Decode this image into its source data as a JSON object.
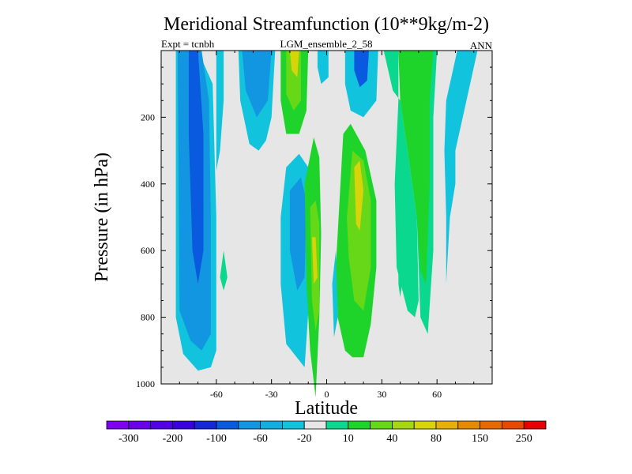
{
  "chart_data": {
    "type": "heatmap",
    "title": "Meridional Streamfunction (10**9kg/m-2)",
    "subtitle_left": "Expt = tcnbh",
    "subtitle_center": "LGM_ensemble_2_58",
    "subtitle_right": "ANN",
    "xlabel": "Latitude",
    "ylabel": "Pressure (in hPa)",
    "xlim": [
      -90,
      90
    ],
    "ylim": [
      1000,
      0
    ],
    "x_ticks": [
      {
        "value": -60,
        "label": "-60"
      },
      {
        "value": -30,
        "label": "-30"
      },
      {
        "value": 0,
        "label": "0"
      },
      {
        "value": 30,
        "label": "30"
      },
      {
        "value": 60,
        "label": "60"
      }
    ],
    "y_ticks": [
      {
        "value": 200,
        "label": "200"
      },
      {
        "value": 400,
        "label": "400"
      },
      {
        "value": 600,
        "label": "600"
      },
      {
        "value": 800,
        "label": "800"
      },
      {
        "value": 1000,
        "label": "1000"
      }
    ],
    "background_color": "#e6e6e6",
    "colorbar": {
      "colors": [
        "#7f00ef",
        "#6a00ea",
        "#5300e6",
        "#3a00e0",
        "#1428d8",
        "#0a5ae0",
        "#1296e2",
        "#12aee2",
        "#12c3de",
        "#e6e6e6",
        "#0ad88e",
        "#1ed42a",
        "#66d818",
        "#a6d812",
        "#d8d40a",
        "#e6b008",
        "#e68a00",
        "#e66a00",
        "#e64a00",
        "#e60000"
      ],
      "labels": [
        {
          "boundary": 1,
          "text": "-300"
        },
        {
          "boundary": 3,
          "text": "-200"
        },
        {
          "boundary": 5,
          "text": "-100"
        },
        {
          "boundary": 7,
          "text": "-60"
        },
        {
          "boundary": 9,
          "text": "-20"
        },
        {
          "boundary": 11,
          "text": "10"
        },
        {
          "boundary": 13,
          "text": "40"
        },
        {
          "boundary": 15,
          "text": "80"
        },
        {
          "boundary": 17,
          "text": "150"
        },
        {
          "boundary": 19,
          "text": "250"
        }
      ]
    },
    "contour_regions": [
      {
        "name": "sh-cell-outer",
        "level": "-20",
        "color": "#12c3de",
        "points": [
          [
            -82,
            0
          ],
          [
            -70,
            0
          ],
          [
            -62,
            100
          ],
          [
            -60,
            500
          ],
          [
            -60,
            900
          ],
          [
            -63,
            950
          ],
          [
            -70,
            960
          ],
          [
            -78,
            910
          ],
          [
            -82,
            800
          ],
          [
            -82,
            0
          ]
        ]
      },
      {
        "name": "sh-cell-mid",
        "level": "-40",
        "color": "#1296e2",
        "points": [
          [
            -81,
            0
          ],
          [
            -68,
            0
          ],
          [
            -64,
            150
          ],
          [
            -63,
            500
          ],
          [
            -63,
            850
          ],
          [
            -68,
            900
          ],
          [
            -74,
            870
          ],
          [
            -80,
            780
          ],
          [
            -81,
            0
          ]
        ]
      },
      {
        "name": "sh-cell-core",
        "level": "-60",
        "color": "#0a5ae0",
        "points": [
          [
            -75,
            0
          ],
          [
            -70,
            0
          ],
          [
            -67,
            250
          ],
          [
            -67,
            600
          ],
          [
            -70,
            700
          ],
          [
            -73,
            600
          ],
          [
            -75,
            250
          ],
          [
            -75,
            0
          ]
        ]
      },
      {
        "name": "sh-ferrel-upper",
        "level": "-20",
        "color": "#12c3de",
        "points": [
          [
            -60,
            0
          ],
          [
            -56,
            0
          ],
          [
            -56,
            150
          ],
          [
            -58,
            300
          ],
          [
            -60,
            360
          ],
          [
            -60,
            0
          ]
        ]
      },
      {
        "name": "sh-ferrel-patch",
        "level": "10",
        "color": "#0ad88e",
        "points": [
          [
            -56,
            600
          ],
          [
            -54,
            680
          ],
          [
            -56,
            720
          ],
          [
            -58,
            680
          ],
          [
            -56,
            600
          ]
        ]
      },
      {
        "name": "upper-cell-left",
        "level": "-20",
        "color": "#12c3de",
        "points": [
          [
            -48,
            0
          ],
          [
            -28,
            0
          ],
          [
            -30,
            200
          ],
          [
            -33,
            270
          ],
          [
            -37,
            300
          ],
          [
            -42,
            280
          ],
          [
            -47,
            150
          ],
          [
            -48,
            0
          ]
        ]
      },
      {
        "name": "upper-cell-left-core",
        "level": "-40",
        "color": "#1296e2",
        "points": [
          [
            -46,
            0
          ],
          [
            -30,
            0
          ],
          [
            -32,
            150
          ],
          [
            -38,
            200
          ],
          [
            -44,
            120
          ],
          [
            -46,
            0
          ]
        ]
      },
      {
        "name": "sh-hadley-upper-green",
        "level": "40",
        "color": "#1ed42a",
        "points": [
          [
            -25,
            0
          ],
          [
            -10,
            0
          ],
          [
            -11,
            180
          ],
          [
            -15,
            250
          ],
          [
            -22,
            250
          ],
          [
            -25,
            150
          ],
          [
            -25,
            0
          ]
        ]
      },
      {
        "name": "sh-hadley-upper-core",
        "level": "80",
        "color": "#66d818",
        "points": [
          [
            -22,
            0
          ],
          [
            -14,
            0
          ],
          [
            -14,
            150
          ],
          [
            -18,
            180
          ],
          [
            -22,
            130
          ],
          [
            -22,
            0
          ]
        ]
      },
      {
        "name": "sh-hadley-upper-peak",
        "level": "150",
        "color": "#d8d40a",
        "points": [
          [
            -20,
            0
          ],
          [
            -15,
            0
          ],
          [
            -16,
            80
          ],
          [
            -19,
            60
          ],
          [
            -20,
            0
          ]
        ]
      },
      {
        "name": "equatorial-upper-blue",
        "level": "-20",
        "color": "#12c3de",
        "points": [
          [
            -5,
            0
          ],
          [
            1,
            0
          ],
          [
            1,
            80
          ],
          [
            -3,
            100
          ],
          [
            -5,
            50
          ],
          [
            -5,
            0
          ]
        ]
      },
      {
        "name": "sh-lower-blue",
        "level": "-20",
        "color": "#12c3de",
        "points": [
          [
            -25,
            500
          ],
          [
            -22,
            350
          ],
          [
            -15,
            310
          ],
          [
            -10,
            350
          ],
          [
            -8,
            450
          ],
          [
            -9,
            700
          ],
          [
            -12,
            950
          ],
          [
            -22,
            880
          ],
          [
            -25,
            700
          ],
          [
            -25,
            500
          ]
        ]
      },
      {
        "name": "sh-lower-blue-core",
        "level": "-40",
        "color": "#1296e2",
        "points": [
          [
            -20,
            420
          ],
          [
            -14,
            380
          ],
          [
            -11,
            450
          ],
          [
            -12,
            680
          ],
          [
            -16,
            720
          ],
          [
            -20,
            600
          ],
          [
            -20,
            420
          ]
        ]
      },
      {
        "name": "sh-lower-green",
        "level": "40",
        "color": "#1ed42a",
        "points": [
          [
            -12,
            400
          ],
          [
            -7,
            260
          ],
          [
            -4,
            320
          ],
          [
            -3,
            550
          ],
          [
            -4,
            800
          ],
          [
            -6,
            1040
          ],
          [
            -9,
            900
          ],
          [
            -11,
            700
          ],
          [
            -12,
            400
          ]
        ]
      },
      {
        "name": "sh-lower-green-core",
        "level": "80",
        "color": "#66d818",
        "points": [
          [
            -9,
            470
          ],
          [
            -6,
            450
          ],
          [
            -4,
            520
          ],
          [
            -4,
            780
          ],
          [
            -6,
            840
          ],
          [
            -8,
            750
          ],
          [
            -9,
            470
          ]
        ]
      },
      {
        "name": "sh-lower-green-peak",
        "level": "150",
        "color": "#d8d40a",
        "points": [
          [
            -8,
            560
          ],
          [
            -6,
            560
          ],
          [
            -5,
            680
          ],
          [
            -7,
            700
          ],
          [
            -8,
            560
          ]
        ]
      },
      {
        "name": "nh-hadley-upper-blue",
        "level": "-20",
        "color": "#12c3de",
        "points": [
          [
            10,
            0
          ],
          [
            28,
            0
          ],
          [
            27,
            150
          ],
          [
            20,
            200
          ],
          [
            13,
            180
          ],
          [
            10,
            100
          ],
          [
            10,
            0
          ]
        ]
      },
      {
        "name": "nh-hadley-upper-blue-core",
        "level": "-60",
        "color": "#0a5ae0",
        "points": [
          [
            15,
            0
          ],
          [
            23,
            0
          ],
          [
            22,
            90
          ],
          [
            18,
            110
          ],
          [
            15,
            60
          ],
          [
            15,
            0
          ]
        ]
      },
      {
        "name": "nh-hadley-green",
        "level": "40",
        "color": "#1ed42a",
        "points": [
          [
            5,
            650
          ],
          [
            7,
            450
          ],
          [
            9,
            250
          ],
          [
            13,
            220
          ],
          [
            21,
            300
          ],
          [
            27,
            450
          ],
          [
            27,
            650
          ],
          [
            24,
            820
          ],
          [
            20,
            920
          ],
          [
            14,
            920
          ],
          [
            10,
            900
          ],
          [
            6,
            800
          ],
          [
            5,
            650
          ]
        ]
      },
      {
        "name": "nh-hadley-green-core",
        "level": "80",
        "color": "#66d818",
        "points": [
          [
            11,
            500
          ],
          [
            14,
            300
          ],
          [
            20,
            330
          ],
          [
            24,
            450
          ],
          [
            24,
            650
          ],
          [
            20,
            780
          ],
          [
            15,
            750
          ],
          [
            12,
            620
          ],
          [
            11,
            500
          ]
        ]
      },
      {
        "name": "nh-hadley-green-peak",
        "level": "150",
        "color": "#d8d40a",
        "points": [
          [
            15,
            350
          ],
          [
            18,
            330
          ],
          [
            20,
            420
          ],
          [
            18,
            540
          ],
          [
            16,
            520
          ],
          [
            15,
            350
          ]
        ]
      },
      {
        "name": "nh-equator-sliver",
        "level": "-20",
        "color": "#12c3de",
        "points": [
          [
            3,
            700
          ],
          [
            5,
            600
          ],
          [
            6,
            800
          ],
          [
            4,
            860
          ],
          [
            3,
            700
          ]
        ]
      },
      {
        "name": "nh-midlat-teal",
        "level": "10",
        "color": "#0ad88e",
        "points": [
          [
            31,
            0
          ],
          [
            39,
            0
          ],
          [
            39,
            150
          ],
          [
            37,
            400
          ],
          [
            38,
            650
          ],
          [
            44,
            780
          ],
          [
            48,
            800
          ],
          [
            50,
            750
          ],
          [
            49,
            500
          ],
          [
            44,
            300
          ],
          [
            40,
            150
          ],
          [
            36,
            120
          ],
          [
            31,
            0
          ]
        ]
      },
      {
        "name": "nh-midlat-teal-right",
        "level": "10",
        "color": "#0ad88e",
        "points": [
          [
            46,
            0
          ],
          [
            50,
            0
          ],
          [
            60,
            0
          ],
          [
            58,
            200
          ],
          [
            58,
            600
          ],
          [
            55,
            850
          ],
          [
            51,
            800
          ],
          [
            49,
            500
          ],
          [
            46,
            200
          ],
          [
            46,
            0
          ]
        ]
      },
      {
        "name": "nh-midlat-green",
        "level": "40",
        "color": "#1ed42a",
        "points": [
          [
            39,
            0
          ],
          [
            58,
            0
          ],
          [
            56,
            150
          ],
          [
            56,
            400
          ],
          [
            54,
            700
          ],
          [
            51,
            660
          ],
          [
            49,
            500
          ],
          [
            44,
            300
          ],
          [
            40,
            150
          ],
          [
            39,
            0
          ]
        ]
      },
      {
        "name": "nh-polar-blue",
        "level": "-20",
        "color": "#12c3de",
        "points": [
          [
            71,
            0
          ],
          [
            82,
            0
          ],
          [
            78,
            100
          ],
          [
            74,
            200
          ],
          [
            70,
            300
          ],
          [
            70,
            400
          ],
          [
            67,
            500
          ],
          [
            66,
            600
          ],
          [
            65,
            700
          ],
          [
            65,
            500
          ],
          [
            64,
            300
          ],
          [
            65,
            150
          ],
          [
            71,
            0
          ]
        ]
      },
      {
        "name": "nh-small-teal",
        "level": "10",
        "color": "#0ad88e",
        "points": [
          [
            39,
            660
          ],
          [
            41,
            700
          ],
          [
            40,
            740
          ],
          [
            39,
            700
          ],
          [
            39,
            660
          ]
        ]
      }
    ]
  }
}
